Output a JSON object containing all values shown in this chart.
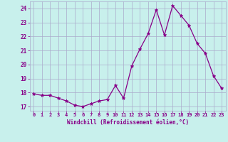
{
  "x": [
    0,
    1,
    2,
    3,
    4,
    5,
    6,
    7,
    8,
    9,
    10,
    11,
    12,
    13,
    14,
    15,
    16,
    17,
    18,
    19,
    20,
    21,
    22,
    23
  ],
  "y": [
    17.9,
    17.8,
    17.8,
    17.6,
    17.4,
    17.1,
    17.0,
    17.2,
    17.4,
    17.5,
    18.5,
    17.6,
    19.9,
    21.1,
    22.2,
    23.9,
    22.1,
    24.2,
    23.5,
    22.8,
    21.5,
    20.8,
    19.2,
    18.3
  ],
  "line_color": "#880088",
  "marker": "*",
  "marker_color": "#880088",
  "bg_color": "#c8f0ec",
  "grid_color": "#aaaacc",
  "xlabel": "Windchill (Refroidissement éolien,°C)",
  "xlabel_color": "#880088",
  "tick_color": "#880088",
  "ylim": [
    16.7,
    24.5
  ],
  "yticks": [
    17,
    18,
    19,
    20,
    21,
    22,
    23,
    24
  ],
  "xlim": [
    -0.5,
    23.5
  ],
  "xticks": [
    0,
    1,
    2,
    3,
    4,
    5,
    6,
    7,
    8,
    9,
    10,
    11,
    12,
    13,
    14,
    15,
    16,
    17,
    18,
    19,
    20,
    21,
    22,
    23
  ]
}
